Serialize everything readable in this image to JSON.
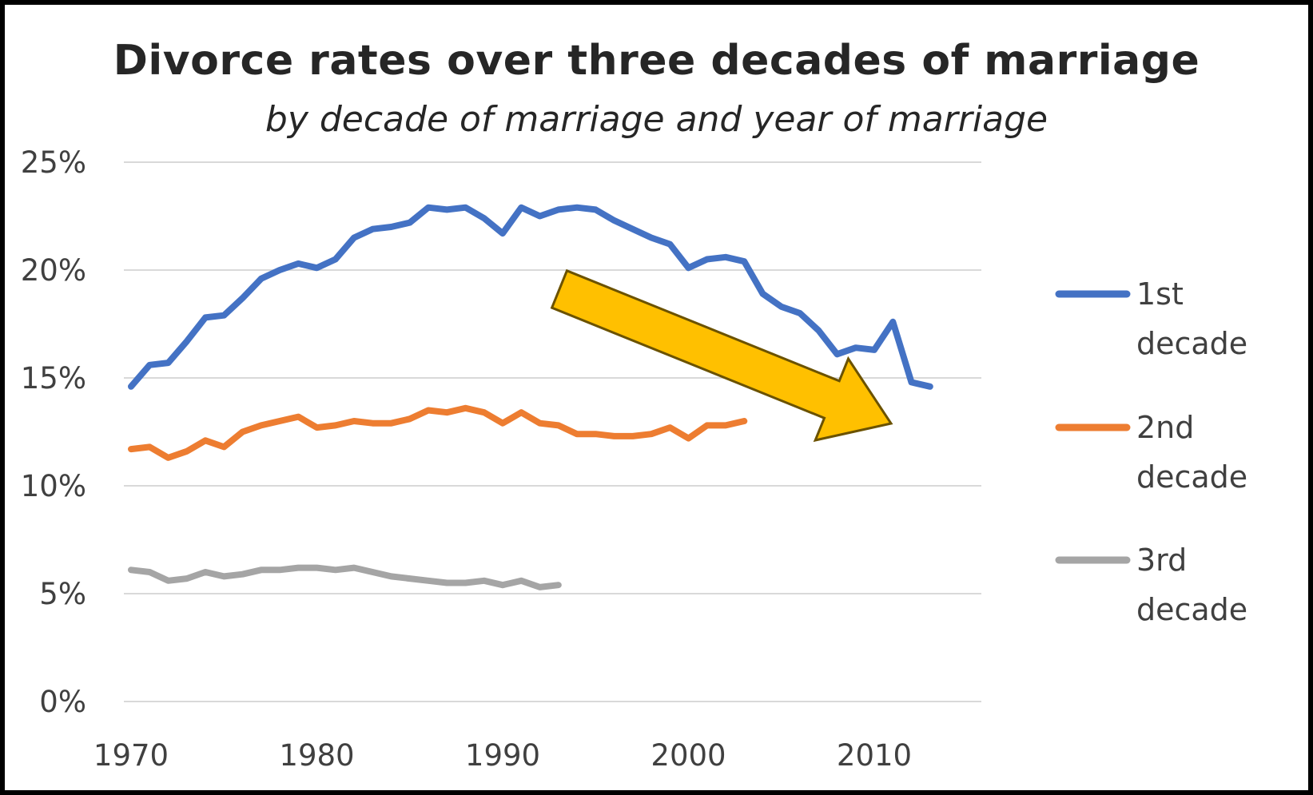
{
  "chart_data": {
    "type": "line",
    "title": "Divorce rates over three decades of marriage",
    "subtitle": "by decade of marriage and year of marriage",
    "xlabel": "",
    "ylabel": "",
    "xlim": [
      1970,
      2015
    ],
    "ylim": [
      0,
      0.25
    ],
    "x_ticks": [
      1970,
      1980,
      1990,
      2000,
      2010
    ],
    "y_ticks": [
      0,
      0.05,
      0.1,
      0.15,
      0.2,
      0.25
    ],
    "y_tick_labels": [
      "0%",
      "5%",
      "10%",
      "15%",
      "20%",
      "25%"
    ],
    "grid": "horizontal",
    "legend_position": "right",
    "annotation": "downward-arrow",
    "annotation_color": "#FFC000",
    "series": [
      {
        "name_line1": "1st",
        "name_line2": "decade",
        "color": "#4472C4",
        "x": [
          1970,
          1971,
          1972,
          1973,
          1974,
          1975,
          1976,
          1977,
          1978,
          1979,
          1980,
          1981,
          1982,
          1983,
          1984,
          1985,
          1986,
          1987,
          1988,
          1989,
          1990,
          1991,
          1992,
          1993,
          1994,
          1995,
          1996,
          1997,
          1998,
          1999,
          2000,
          2001,
          2002,
          2003,
          2004,
          2005,
          2006,
          2007,
          2008,
          2009,
          2010,
          2011,
          2012,
          2013
        ],
        "values": [
          0.146,
          0.156,
          0.157,
          0.167,
          0.178,
          0.179,
          0.187,
          0.196,
          0.2,
          0.203,
          0.201,
          0.205,
          0.215,
          0.219,
          0.22,
          0.222,
          0.229,
          0.228,
          0.229,
          0.224,
          0.217,
          0.229,
          0.225,
          0.228,
          0.229,
          0.228,
          0.223,
          0.219,
          0.215,
          0.212,
          0.201,
          0.205,
          0.206,
          0.204,
          0.189,
          0.183,
          0.18,
          0.172,
          0.161,
          0.164,
          0.163,
          0.176,
          0.148,
          0.146
        ]
      },
      {
        "name_line1": "2nd",
        "name_line2": "decade",
        "color": "#ED7D31",
        "x": [
          1970,
          1971,
          1972,
          1973,
          1974,
          1975,
          1976,
          1977,
          1978,
          1979,
          1980,
          1981,
          1982,
          1983,
          1984,
          1985,
          1986,
          1987,
          1988,
          1989,
          1990,
          1991,
          1992,
          1993,
          1994,
          1995,
          1996,
          1997,
          1998,
          1999,
          2000,
          2001,
          2002,
          2003
        ],
        "values": [
          0.117,
          0.118,
          0.113,
          0.116,
          0.121,
          0.118,
          0.125,
          0.128,
          0.13,
          0.132,
          0.127,
          0.128,
          0.13,
          0.129,
          0.129,
          0.131,
          0.135,
          0.134,
          0.136,
          0.134,
          0.129,
          0.134,
          0.129,
          0.128,
          0.124,
          0.124,
          0.123,
          0.123,
          0.124,
          0.127,
          0.122,
          0.128,
          0.128,
          0.13
        ]
      },
      {
        "name_line1": "3rd",
        "name_line2": "decade",
        "color": "#A5A5A5",
        "x": [
          1970,
          1971,
          1972,
          1973,
          1974,
          1975,
          1976,
          1977,
          1978,
          1979,
          1980,
          1981,
          1982,
          1983,
          1984,
          1985,
          1986,
          1987,
          1988,
          1989,
          1990,
          1991,
          1992,
          1993
        ],
        "values": [
          0.061,
          0.06,
          0.056,
          0.057,
          0.06,
          0.058,
          0.059,
          0.061,
          0.061,
          0.062,
          0.062,
          0.061,
          0.062,
          0.06,
          0.058,
          0.057,
          0.056,
          0.055,
          0.055,
          0.056,
          0.054,
          0.056,
          0.053,
          0.054
        ]
      }
    ]
  }
}
